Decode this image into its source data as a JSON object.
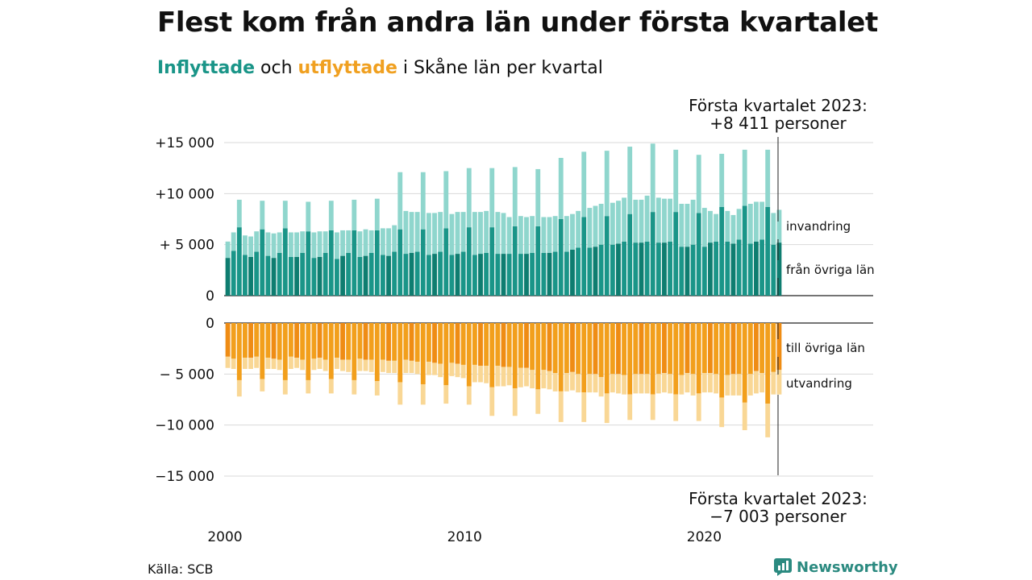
{
  "title": "Flest kom från andra län under första kvartalet",
  "subtitle": {
    "part1": "Inflyttade",
    "part2": " och ",
    "part3": "utflyttade",
    "part4": " i Skåne län per kvartal"
  },
  "source": "Källa: SCB",
  "brand": "Newsworthy",
  "colors": {
    "from_other_lan": "#1a9588",
    "from_other_lan_q1": "#0e7d70",
    "immigration": "#8fd6cd",
    "to_other_lan": "#f29f1c",
    "to_other_lan_q1": "#ef8c14",
    "emigration": "#f9d795",
    "grid": "#d9d9d9",
    "axis": "#222222"
  },
  "chart_data": {
    "type": "bar",
    "x_range": [
      2000,
      2023.25
    ],
    "x_ticks": [
      "2000",
      "2010",
      "2020"
    ],
    "panels": [
      {
        "name": "inflyttade",
        "yticks": [
          "+15 000",
          "+10 000",
          "+ 5 000",
          "0"
        ],
        "ylim": [
          0,
          15000
        ],
        "series": [
          {
            "name": "från övriga län",
            "values": [
              3700,
              4400,
              6700,
              4000,
              3800,
              4300,
              6500,
              3900,
              3700,
              4200,
              6600,
              3800,
              3800,
              4200,
              6300,
              3700,
              3800,
              4200,
              6400,
              3600,
              3900,
              4200,
              6400,
              3800,
              3900,
              4200,
              6400,
              4000,
              3900,
              4300,
              6500,
              4100,
              4200,
              4300,
              6500,
              4000,
              4100,
              4300,
              6600,
              4000,
              4100,
              4300,
              6700,
              4000,
              4100,
              4200,
              6700,
              4100,
              4100,
              4100,
              6800,
              4100,
              4100,
              4200,
              6800,
              4200,
              4200,
              4300,
              7500,
              4300,
              4500,
              4700,
              7700,
              4700,
              4800,
              5000,
              7800,
              5000,
              5100,
              5300,
              8000,
              5200,
              5200,
              5300,
              8200,
              5200,
              5200,
              5300,
              8200,
              4800,
              4800,
              5000,
              8100,
              4800,
              5200,
              5300,
              8700,
              5300,
              5100,
              5500,
              8800,
              5100,
              5300,
              5500,
              8700,
              5000,
              5200
            ]
          },
          {
            "name": "invandring",
            "values": [
              1600,
              1800,
              2700,
              1900,
              2000,
              2000,
              2800,
              2300,
              2400,
              2000,
              2700,
              2400,
              2400,
              2100,
              2900,
              2500,
              2500,
              2100,
              2900,
              2600,
              2500,
              2200,
              3000,
              2500,
              2600,
              2200,
              3100,
              2600,
              2700,
              2600,
              5600,
              4200,
              4000,
              3900,
              5600,
              4100,
              4000,
              3900,
              5600,
              4000,
              4100,
              3900,
              5800,
              4200,
              4100,
              4100,
              5800,
              4100,
              4000,
              3600,
              5800,
              3700,
              3600,
              3600,
              5600,
              3500,
              3500,
              3500,
              6000,
              3500,
              3500,
              3600,
              6400,
              3900,
              4000,
              4000,
              6400,
              4100,
              4200,
              4300,
              6600,
              4200,
              4200,
              4500,
              6700,
              4400,
              4300,
              4200,
              6100,
              4200,
              4200,
              4400,
              5700,
              3800,
              3100,
              2700,
              5200,
              3000,
              2800,
              3000,
              5500,
              3900,
              3900,
              3700,
              5600,
              3100,
              3211
            ]
          }
        ]
      },
      {
        "name": "utflyttade",
        "yticks": [
          "0",
          "− 5 000",
          "−10 000",
          "−15 000"
        ],
        "ylim": [
          -15000,
          0
        ],
        "series": [
          {
            "name": "till övriga län",
            "values": [
              -3300,
              -3500,
              -5600,
              -3400,
              -3400,
              -3300,
              -5500,
              -3400,
              -3500,
              -3600,
              -5600,
              -3300,
              -3400,
              -3600,
              -5600,
              -3500,
              -3400,
              -3600,
              -5500,
              -3400,
              -3600,
              -3600,
              -5600,
              -3500,
              -3600,
              -3600,
              -5700,
              -3600,
              -3700,
              -3700,
              -5800,
              -3600,
              -3700,
              -3800,
              -6000,
              -3800,
              -3900,
              -4000,
              -6100,
              -3900,
              -4000,
              -4100,
              -6200,
              -4100,
              -4200,
              -4200,
              -6300,
              -4200,
              -4300,
              -4300,
              -6400,
              -4400,
              -4400,
              -4600,
              -6500,
              -4600,
              -4700,
              -4900,
              -6700,
              -4900,
              -4800,
              -5000,
              -6800,
              -5000,
              -5000,
              -5300,
              -6900,
              -5000,
              -5000,
              -5100,
              -7000,
              -5000,
              -5000,
              -5000,
              -7000,
              -5000,
              -4900,
              -5000,
              -7000,
              -5100,
              -4900,
              -5000,
              -6900,
              -4900,
              -4900,
              -5000,
              -7300,
              -5100,
              -5000,
              -5000,
              -7800,
              -5000,
              -4700,
              -4900,
              -7900,
              -4800,
              -4600
            ]
          },
          {
            "name": "utvandring",
            "values": [
              -1100,
              -1000,
              -1600,
              -1100,
              -1100,
              -1100,
              -1200,
              -1100,
              -1000,
              -1000,
              -1400,
              -1200,
              -1000,
              -1000,
              -1300,
              -1100,
              -1100,
              -1100,
              -1400,
              -1100,
              -1100,
              -1200,
              -1400,
              -1200,
              -1100,
              -1200,
              -1400,
              -1200,
              -1200,
              -1200,
              -2200,
              -1300,
              -1200,
              -1200,
              -2000,
              -1300,
              -1200,
              -1300,
              -1800,
              -1300,
              -1300,
              -1300,
              -1800,
              -1700,
              -1600,
              -1700,
              -2800,
              -2000,
              -1900,
              -1800,
              -2700,
              -1900,
              -1800,
              -1800,
              -2400,
              -1800,
              -1800,
              -1800,
              -3000,
              -1800,
              -1800,
              -1800,
              -2900,
              -1800,
              -1800,
              -1900,
              -2900,
              -1800,
              -1900,
              -1900,
              -2500,
              -1900,
              -1900,
              -1900,
              -2500,
              -1900,
              -1900,
              -1900,
              -2600,
              -1900,
              -1900,
              -2100,
              -2700,
              -1900,
              -1900,
              -1900,
              -2900,
              -2000,
              -2100,
              -2100,
              -2700,
              -2100,
              -2200,
              -1900,
              -3300,
              -2200,
              -2403
            ]
          }
        ]
      }
    ],
    "series_labels": [
      "invandring",
      "från övriga län",
      "till övriga län",
      "utvandring"
    ],
    "annotations": [
      {
        "lines": [
          "Första kvartalet 2023:",
          "+8 411 personer"
        ]
      },
      {
        "lines": [
          "Första kvartalet 2023:",
          "−7 003 personer"
        ]
      }
    ]
  }
}
